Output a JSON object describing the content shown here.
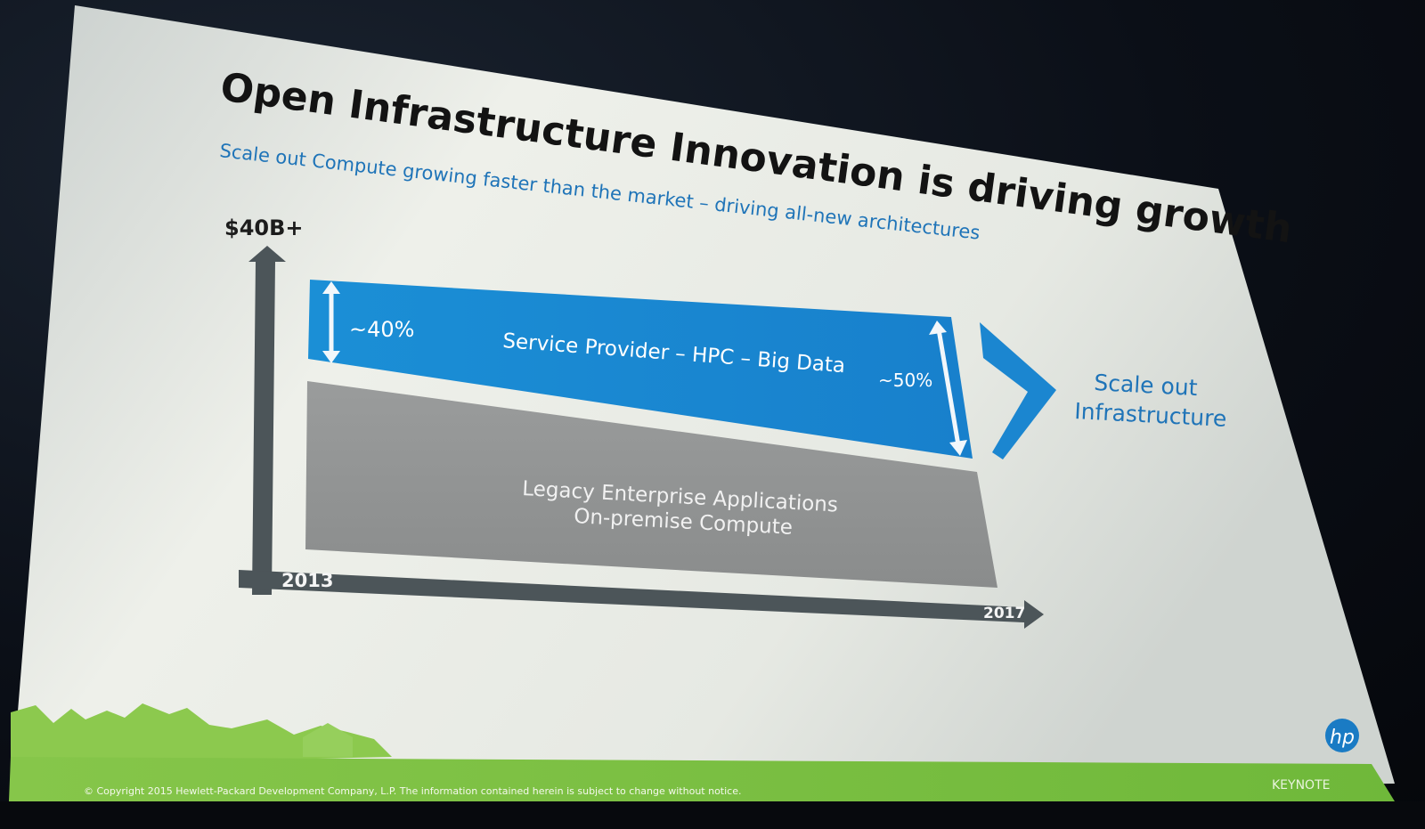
{
  "slide": {
    "title": "Open Infrastructure Innovation is driving growth",
    "subtitle": "Scale out Compute growing faster than the market – driving all-new architectures",
    "y_axis_top_label": "$40B+",
    "x_axis_start": "2013",
    "x_axis_end": "2017",
    "blue_band": {
      "label": "Service Provider – HPC – Big Data",
      "left_share": "~40%",
      "right_share": "~50%",
      "color": "#1a8ad4"
    },
    "gray_band": {
      "line1": "Legacy Enterprise Applications",
      "line2": "On-premise Compute",
      "color": "#8f9191"
    },
    "callout": {
      "line1": "Scale out",
      "line2": "Infrastructure",
      "chevron_icon": "chevron-right-icon"
    },
    "footer": {
      "copyright": "© Copyright 2015 Hewlett-Packard Development Company, L.P.  The information contained herein is subject to change without notice.",
      "keynote": "KEYNOTE",
      "logo_icon": "hp-logo-icon",
      "logo_text": "hp"
    },
    "accent_colors": {
      "blue": "#1a8ad4",
      "axis": "#4a5458",
      "footer_green": "#7cc242"
    }
  }
}
